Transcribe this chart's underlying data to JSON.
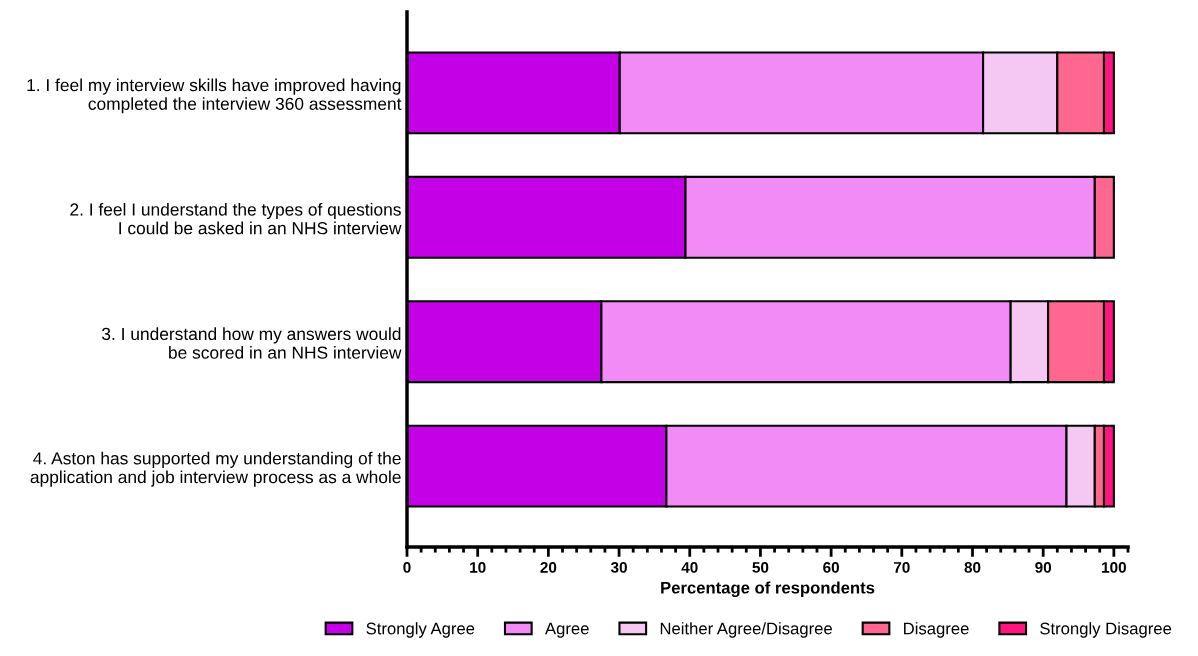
{
  "chart_data": {
    "type": "bar",
    "orientation": "horizontal",
    "stacked": true,
    "xlabel": "Percentage of respondents",
    "categories": [
      "1. I feel my interview skills have improved having\ncompleted the interview 360 assessment",
      "2. I feel I understand the types of questions\nI could be asked in an NHS interview",
      "3. I understand how my answers would\nbe scored in an NHS interview",
      "4. Aston has supported my understanding of the\napplication and job interview process as a whole"
    ],
    "series": [
      {
        "name": "Strongly Agree",
        "color": "#c300e6",
        "values": [
          30.1,
          39.4,
          27.5,
          36.7
        ]
      },
      {
        "name": "Agree",
        "color": "#f28bf5",
        "values": [
          51.4,
          57.9,
          57.9,
          56.6
        ]
      },
      {
        "name": "Neither Agree/Disagree",
        "color": "#f5c8f3",
        "values": [
          10.5,
          0,
          5.3,
          4.0
        ]
      },
      {
        "name": "Disagree",
        "color": "#ff6690",
        "values": [
          6.6,
          2.7,
          7.9,
          1.3
        ]
      },
      {
        "name": "Strongly Disagree",
        "color": "#ff1480",
        "values": [
          1.4,
          0,
          1.4,
          1.4
        ]
      }
    ],
    "xlim": [
      0,
      102
    ],
    "xticks": [
      0,
      {
        "value": 2,
        "label": null
      },
      {
        "value": 4,
        "label": null
      },
      {
        "value": 6,
        "label": null
      },
      {
        "value": 8,
        "label": null
      },
      10,
      {
        "value": 12,
        "label": null
      },
      {
        "value": 14,
        "label": null
      },
      {
        "value": 16,
        "label": null
      },
      {
        "value": 18,
        "label": null
      },
      20,
      {
        "value": 22,
        "label": null
      },
      {
        "value": 24,
        "label": null
      },
      {
        "value": 26,
        "label": null
      },
      {
        "value": 28,
        "label": null
      },
      30,
      {
        "value": 32,
        "label": null
      },
      {
        "value": 34,
        "label": null
      },
      {
        "value": 36,
        "label": null
      },
      {
        "value": 38,
        "label": null
      },
      40,
      {
        "value": 42,
        "label": null
      },
      {
        "value": 44,
        "label": null
      },
      {
        "value": 46,
        "label": null
      },
      {
        "value": 48,
        "label": null
      },
      50,
      {
        "value": 52,
        "label": null
      },
      {
        "value": 54,
        "label": null
      },
      {
        "value": 56,
        "label": null
      },
      {
        "value": 58,
        "label": null
      },
      60,
      {
        "value": 62,
        "label": null
      },
      {
        "value": 64,
        "label": null
      },
      {
        "value": 66,
        "label": null
      },
      {
        "value": 68,
        "label": null
      },
      70,
      {
        "value": 72,
        "label": null
      },
      {
        "value": 74,
        "label": null
      },
      {
        "value": 76,
        "label": null
      },
      {
        "value": 78,
        "label": null
      },
      80,
      {
        "value": 82,
        "label": null
      },
      {
        "value": 84,
        "label": null
      },
      {
        "value": 86,
        "label": null
      },
      {
        "value": 88,
        "label": null
      },
      90,
      {
        "value": 92,
        "label": null
      },
      {
        "value": 94,
        "label": null
      },
      {
        "value": 96,
        "label": null
      },
      {
        "value": 98,
        "label": null
      },
      100,
      {
        "value": 102,
        "label": null
      }
    ],
    "grid": false,
    "legend": "bottom"
  }
}
